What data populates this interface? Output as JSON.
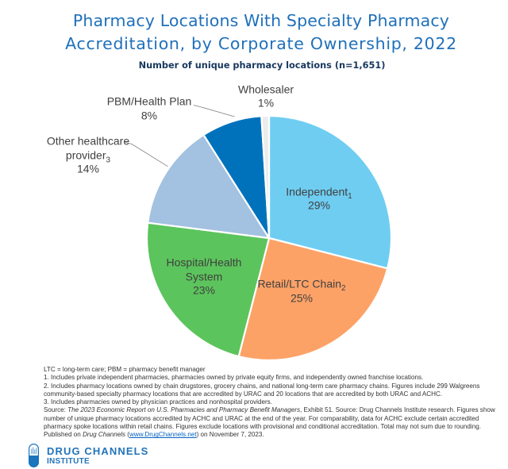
{
  "header": {
    "title_line1": "Pharmacy Locations With Specialty Pharmacy",
    "title_line2": "Accreditation, by Corporate Ownership, 2022",
    "subtitle": "Number of unique pharmacy locations (n=1,651)"
  },
  "chart_data": {
    "type": "pie",
    "title": "Pharmacy Locations With Specialty Pharmacy Accreditation, by Corporate Ownership, 2022",
    "subtitle": "Number of unique pharmacy locations (n=1,651)",
    "n_total": "1,651",
    "categories": [
      "Independent",
      "Retail/LTC Chain",
      "Hospital/Health System",
      "Other healthcare provider",
      "PBM/Health Plan",
      "Wholesaler"
    ],
    "values": [
      29,
      25,
      23,
      14,
      8,
      1
    ],
    "unit": "percent",
    "colors": [
      "#6FCDF2",
      "#FDA267",
      "#5CC45C",
      "#A3C1E0",
      "#0072BC",
      "#ECECEC"
    ],
    "start_angle_deg": 0,
    "direction": "clockwise",
    "legend": "none"
  },
  "pie": {
    "labels": {
      "independent": {
        "text": "Independent",
        "sub": "1",
        "pct": "29%"
      },
      "retail": {
        "text": "Retail/LTC Chain",
        "sub": "2",
        "pct": "25%"
      },
      "hospital": {
        "line1": "Hospital/Health",
        "line2": "System",
        "pct": "23%"
      },
      "other": {
        "line1": "Other healthcare",
        "line2": "provider",
        "sub": "3",
        "pct": "14%"
      },
      "pbm": {
        "text": "PBM/Health Plan",
        "pct": "8%"
      },
      "wholesaler": {
        "text": "Wholesaler",
        "pct": "1%"
      }
    }
  },
  "footnotes": {
    "abbrev": "LTC = long-term care; PBM = pharmacy benefit manager",
    "note1": "1. Includes private independent pharmacies, pharmacies owned by private equity firms, and independently owned franchise locations.",
    "note2_line1": "2. Includes pharmacy locations owned by chain drugstores, grocery chains, and national long-term care pharmacy chains. Figures include 299 Walgreens",
    "note2_line2": "community-based specialty pharmacy locations that are accredited by URAC and 20 locations that are accredited by both URAC and ACHC.",
    "note3": "3. Includes pharmacies owned by physician practices and nonhospital providers.",
    "source_prefix": "Source: ",
    "source_italic": "The 2023 Economic Report on U.S. Pharmacies and Pharmacy Benefit Managers",
    "source_line1_rest": ", Exhibit 51. Source: Drug Channels Institute research. Figures show",
    "source_line2": "number of unique pharmacy locations accredited by ACHC and URAC at the end of the year. For comparability, data for ACHC exclude certain accredited",
    "source_line3": "pharmacy spoke locations within retail chains. Figures exclude locations with provisional and  conditional accreditation. Total may not sum due to rounding.",
    "published_prefix": "Published on ",
    "published_italic": "Drug Channels",
    "published_open": " (",
    "published_link": "www.DrugChannels.net",
    "published_suffix": ") on November 7, 2023."
  },
  "logo": {
    "name": "DRUG CHANNELS",
    "subname": "INSTITUTE"
  }
}
